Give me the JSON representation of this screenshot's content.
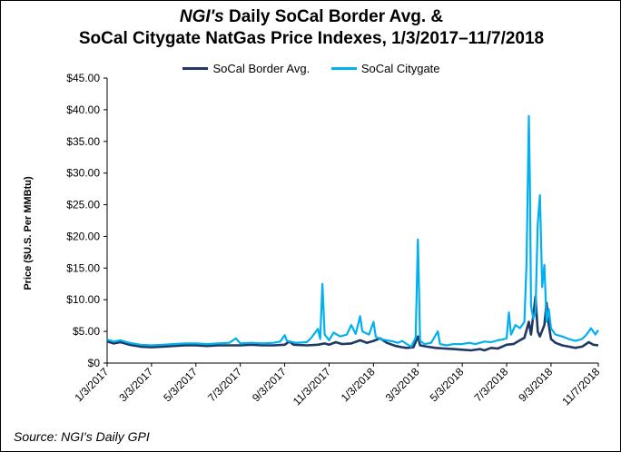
{
  "chart_data": {
    "type": "line",
    "title_italic": "NGI's",
    "title_rest": " Daily SoCal Border Avg. &",
    "title_line2": "SoCal Citygate NatGas Price Indexes, 1/3/2017–11/7/2018",
    "ylabel": "Price ($U.S. Per MMBtu)",
    "xlabel": "",
    "ylim": [
      0,
      45
    ],
    "ytick_values": [
      0,
      5,
      10,
      15,
      20,
      25,
      30,
      35,
      40,
      45
    ],
    "ytick_labels": [
      "$0",
      "$5.00",
      "$10.00",
      "$15.00",
      "$20.00",
      "$25.00",
      "$30.00",
      "$35.00",
      "$40.00",
      "$45.00"
    ],
    "xlim": [
      0,
      22.13
    ],
    "xtick_values": [
      0,
      2,
      4,
      6,
      8,
      10,
      12,
      14,
      16,
      18,
      20,
      22.13
    ],
    "xtick_labels": [
      "1/3/2017",
      "3/3/2017",
      "5/3/2017",
      "7/3/2017",
      "9/3/2017",
      "11/3/2017",
      "1/3/2018",
      "3/3/2018",
      "5/3/2018",
      "7/3/2018",
      "9/3/2018",
      "11/7/2018"
    ],
    "x_units": "months since 1/3/2017",
    "grid": false,
    "legend_position": "top-center",
    "series": [
      {
        "name": "SoCal Border Avg.",
        "color": "#1f3864",
        "points": [
          [
            0,
            3.4
          ],
          [
            0.3,
            3.1
          ],
          [
            0.6,
            3.3
          ],
          [
            1.0,
            2.9
          ],
          [
            1.5,
            2.6
          ],
          [
            2.0,
            2.5
          ],
          [
            2.5,
            2.6
          ],
          [
            3.0,
            2.7
          ],
          [
            3.5,
            2.8
          ],
          [
            4.0,
            2.8
          ],
          [
            4.5,
            2.7
          ],
          [
            5.0,
            2.8
          ],
          [
            5.5,
            2.8
          ],
          [
            6.0,
            2.8
          ],
          [
            6.5,
            2.9
          ],
          [
            7.0,
            2.8
          ],
          [
            7.5,
            2.8
          ],
          [
            8.0,
            2.9
          ],
          [
            8.2,
            3.4
          ],
          [
            8.4,
            2.9
          ],
          [
            9.0,
            2.8
          ],
          [
            9.5,
            2.9
          ],
          [
            9.8,
            3.1
          ],
          [
            10.0,
            2.9
          ],
          [
            10.3,
            3.3
          ],
          [
            10.6,
            3.0
          ],
          [
            11.0,
            3.1
          ],
          [
            11.4,
            3.6
          ],
          [
            11.7,
            3.2
          ],
          [
            12.0,
            3.5
          ],
          [
            12.3,
            3.9
          ],
          [
            12.6,
            3.2
          ],
          [
            13.0,
            2.7
          ],
          [
            13.3,
            2.5
          ],
          [
            13.5,
            2.4
          ],
          [
            13.8,
            2.5
          ],
          [
            14.0,
            4.2
          ],
          [
            14.1,
            2.8
          ],
          [
            14.4,
            2.6
          ],
          [
            14.8,
            2.4
          ],
          [
            15.2,
            2.3
          ],
          [
            15.6,
            2.2
          ],
          [
            16.0,
            2.1
          ],
          [
            16.4,
            2.0
          ],
          [
            16.8,
            2.2
          ],
          [
            17.0,
            2.0
          ],
          [
            17.3,
            2.4
          ],
          [
            17.6,
            2.3
          ],
          [
            18.0,
            2.9
          ],
          [
            18.3,
            3.0
          ],
          [
            18.6,
            3.6
          ],
          [
            18.8,
            4.0
          ],
          [
            19.0,
            6.5
          ],
          [
            19.1,
            4.5
          ],
          [
            19.3,
            10.5
          ],
          [
            19.4,
            5.0
          ],
          [
            19.5,
            4.2
          ],
          [
            19.7,
            6.0
          ],
          [
            19.8,
            9.5
          ],
          [
            19.9,
            6.0
          ],
          [
            20.0,
            3.8
          ],
          [
            20.2,
            3.2
          ],
          [
            20.5,
            2.8
          ],
          [
            20.8,
            2.6
          ],
          [
            21.1,
            2.4
          ],
          [
            21.4,
            2.6
          ],
          [
            21.7,
            3.3
          ],
          [
            21.9,
            2.9
          ],
          [
            22.13,
            2.8
          ]
        ]
      },
      {
        "name": "SoCal Citygate",
        "color": "#00b0f0",
        "points": [
          [
            0,
            3.7
          ],
          [
            0.3,
            3.4
          ],
          [
            0.6,
            3.6
          ],
          [
            1.0,
            3.2
          ],
          [
            1.5,
            2.9
          ],
          [
            2.0,
            2.8
          ],
          [
            2.5,
            2.9
          ],
          [
            3.0,
            3.0
          ],
          [
            3.5,
            3.1
          ],
          [
            4.0,
            3.1
          ],
          [
            4.5,
            3.0
          ],
          [
            5.0,
            3.1
          ],
          [
            5.5,
            3.2
          ],
          [
            5.8,
            3.9
          ],
          [
            6.0,
            3.1
          ],
          [
            6.5,
            3.2
          ],
          [
            7.0,
            3.1
          ],
          [
            7.5,
            3.2
          ],
          [
            7.8,
            3.4
          ],
          [
            8.0,
            4.4
          ],
          [
            8.1,
            3.5
          ],
          [
            8.5,
            3.2
          ],
          [
            9.0,
            3.3
          ],
          [
            9.2,
            4.0
          ],
          [
            9.5,
            5.4
          ],
          [
            9.6,
            3.8
          ],
          [
            9.7,
            12.5
          ],
          [
            9.8,
            4.5
          ],
          [
            10.0,
            3.6
          ],
          [
            10.2,
            4.8
          ],
          [
            10.5,
            4.2
          ],
          [
            10.8,
            4.5
          ],
          [
            11.0,
            6.0
          ],
          [
            11.2,
            4.6
          ],
          [
            11.4,
            7.4
          ],
          [
            11.5,
            5.0
          ],
          [
            11.8,
            4.5
          ],
          [
            12.0,
            6.5
          ],
          [
            12.1,
            4.2
          ],
          [
            12.3,
            3.8
          ],
          [
            12.6,
            3.6
          ],
          [
            12.9,
            3.4
          ],
          [
            13.1,
            3.2
          ],
          [
            13.3,
            3.5
          ],
          [
            13.5,
            3.0
          ],
          [
            13.7,
            2.6
          ],
          [
            13.9,
            4.0
          ],
          [
            14.0,
            19.5
          ],
          [
            14.05,
            12.0
          ],
          [
            14.1,
            3.5
          ],
          [
            14.3,
            3.0
          ],
          [
            14.6,
            3.2
          ],
          [
            14.9,
            5.0
          ],
          [
            15.0,
            3.0
          ],
          [
            15.3,
            2.8
          ],
          [
            15.6,
            3.0
          ],
          [
            16.0,
            3.0
          ],
          [
            16.3,
            3.2
          ],
          [
            16.6,
            3.0
          ],
          [
            17.0,
            3.4
          ],
          [
            17.3,
            3.3
          ],
          [
            17.6,
            3.6
          ],
          [
            17.8,
            3.7
          ],
          [
            18.0,
            3.9
          ],
          [
            18.1,
            8.0
          ],
          [
            18.2,
            4.5
          ],
          [
            18.4,
            6.0
          ],
          [
            18.6,
            5.5
          ],
          [
            18.8,
            6.5
          ],
          [
            18.9,
            16.0
          ],
          [
            19.0,
            39.0
          ],
          [
            19.05,
            28.0
          ],
          [
            19.1,
            9.0
          ],
          [
            19.2,
            7.0
          ],
          [
            19.3,
            8.0
          ],
          [
            19.4,
            22.0
          ],
          [
            19.5,
            26.5
          ],
          [
            19.6,
            12.0
          ],
          [
            19.7,
            15.5
          ],
          [
            19.8,
            6.5
          ],
          [
            19.9,
            8.5
          ],
          [
            20.0,
            5.5
          ],
          [
            20.2,
            4.5
          ],
          [
            20.5,
            4.2
          ],
          [
            20.8,
            3.8
          ],
          [
            21.1,
            3.5
          ],
          [
            21.4,
            3.8
          ],
          [
            21.6,
            4.5
          ],
          [
            21.8,
            5.5
          ],
          [
            22.0,
            4.5
          ],
          [
            22.13,
            5.2
          ]
        ]
      }
    ]
  },
  "source": "Source: NGI's Daily GPI"
}
